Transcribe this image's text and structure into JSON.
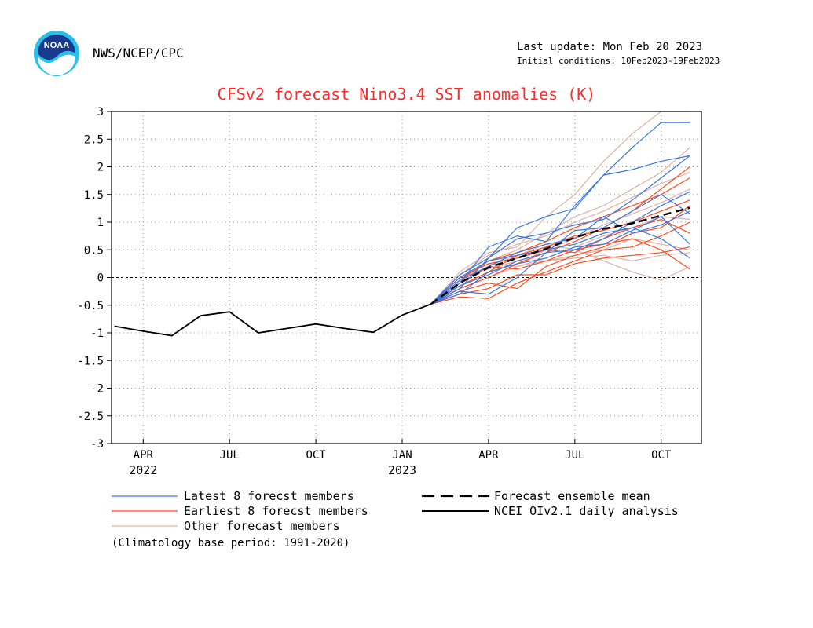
{
  "header": {
    "agency": "NWS/NCEP/CPC",
    "last_update": "Last update: Mon Feb 20 2023",
    "initial_conditions": "Initial conditions: 10Feb2023-19Feb2023",
    "logo_text": "NOAA"
  },
  "footnote": "(Climatology base period: 1991-2020)",
  "colors": {
    "latest": "#3a78e0",
    "earliest": "#ff4a1c",
    "other": "#e0b0a8",
    "title": "#ff2a2a",
    "observed": "#000000"
  },
  "chart_data": {
    "type": "line",
    "title": "CFSv2 forecast Nino3.4 SST anomalies (K)",
    "xlabel": "",
    "ylabel": "",
    "ylim": [
      -3,
      3
    ],
    "xlim": [
      "2022-03",
      "2023-11"
    ],
    "yticks": [
      "3",
      "2.5",
      "2",
      "1.5",
      "1",
      "0.5",
      "0",
      "-0.5",
      "-1",
      "-1.5",
      "-2",
      "-2.5",
      "-3"
    ],
    "ytick_values": [
      3,
      2.5,
      2,
      1.5,
      1,
      0.5,
      0,
      -0.5,
      -1,
      -1.5,
      -2,
      -2.5,
      -3
    ],
    "xticks": [
      {
        "label": "APR",
        "year": "2022",
        "value": "2022-04"
      },
      {
        "label": "JUL",
        "year": "",
        "value": "2022-07"
      },
      {
        "label": "OCT",
        "year": "",
        "value": "2022-10"
      },
      {
        "label": "JAN",
        "year": "2023",
        "value": "2023-01"
      },
      {
        "label": "APR",
        "year": "",
        "value": "2023-04"
      },
      {
        "label": "JUL",
        "year": "",
        "value": "2023-07"
      },
      {
        "label": "OCT",
        "year": "",
        "value": "2023-10"
      }
    ],
    "grid": true,
    "zero_line": true,
    "legend_position": "bottom",
    "legend": [
      {
        "label": "Latest 8 forecst members",
        "style": "latest"
      },
      {
        "label": "Earliest 8 forecst members",
        "style": "earliest"
      },
      {
        "label": "Other forecast members",
        "style": "other"
      },
      {
        "label": "Forecast ensemble mean",
        "style": "mean"
      },
      {
        "label": "NCEI OIv2.1 daily analysis",
        "style": "observed"
      }
    ],
    "forecast_x": [
      "2023-02",
      "2023-03",
      "2023-04",
      "2023-05",
      "2023-06",
      "2023-07",
      "2023-08",
      "2023-09",
      "2023-10",
      "2023-11"
    ],
    "series": [
      {
        "name": "NCEI OIv2.1 daily analysis",
        "kind": "observed",
        "x": [
          "2022-03",
          "2022-04",
          "2022-05",
          "2022-06",
          "2022-07",
          "2022-08",
          "2022-09",
          "2022-10",
          "2022-11",
          "2022-12",
          "2023-01",
          "2023-02"
        ],
        "values": [
          -0.88,
          -0.97,
          -1.05,
          -0.69,
          -0.62,
          -1.0,
          -0.92,
          -0.84,
          -0.92,
          -0.99,
          -0.68,
          -0.48
        ]
      },
      {
        "name": "Forecast ensemble mean",
        "kind": "mean",
        "values": [
          -0.48,
          -0.1,
          0.18,
          0.35,
          0.52,
          0.72,
          0.88,
          0.98,
          1.12,
          1.26
        ]
      }
    ],
    "members": {
      "latest": [
        [
          -0.48,
          -0.2,
          0.35,
          0.9,
          1.1,
          1.25,
          1.85,
          2.35,
          2.8,
          2.8
        ],
        [
          -0.48,
          -0.1,
          0.55,
          0.75,
          0.65,
          1.3,
          1.85,
          1.95,
          2.1,
          2.2
        ],
        [
          -0.48,
          -0.25,
          -0.3,
          0.0,
          0.45,
          0.85,
          0.9,
          1.2,
          1.5,
          1.15
        ],
        [
          -0.48,
          0.0,
          0.3,
          0.4,
          0.5,
          0.6,
          0.8,
          0.9,
          0.7,
          0.35
        ],
        [
          -0.48,
          -0.3,
          0.1,
          0.25,
          0.35,
          0.55,
          0.6,
          0.85,
          1.1,
          0.6
        ],
        [
          -0.48,
          -0.05,
          0.2,
          0.45,
          0.6,
          0.7,
          1.1,
          0.8,
          0.95,
          1.2
        ],
        [
          -0.48,
          -0.15,
          0.05,
          0.3,
          0.45,
          0.5,
          0.7,
          1.0,
          1.3,
          1.55
        ],
        [
          -0.48,
          0.05,
          0.35,
          0.7,
          0.8,
          0.95,
          1.05,
          1.4,
          1.8,
          2.2
        ]
      ],
      "earliest": [
        [
          -0.48,
          -0.35,
          -0.38,
          -0.1,
          0.1,
          0.3,
          0.5,
          0.55,
          0.75,
          1.0
        ],
        [
          -0.48,
          -0.2,
          0.0,
          0.25,
          0.45,
          0.65,
          0.9,
          1.2,
          1.6,
          2.0
        ],
        [
          -0.48,
          -0.1,
          0.2,
          0.15,
          0.3,
          0.5,
          0.6,
          0.7,
          0.5,
          0.15
        ],
        [
          -0.48,
          -0.25,
          -0.1,
          -0.2,
          0.2,
          0.4,
          0.55,
          0.8,
          0.9,
          1.3
        ],
        [
          -0.48,
          -0.05,
          0.3,
          0.45,
          0.65,
          0.9,
          1.1,
          1.3,
          1.5,
          1.8
        ],
        [
          -0.48,
          -0.3,
          -0.2,
          0.05,
          0.05,
          0.25,
          0.35,
          0.4,
          0.45,
          0.55
        ],
        [
          -0.48,
          -0.15,
          0.1,
          0.4,
          0.55,
          0.75,
          0.85,
          1.0,
          1.2,
          1.4
        ],
        [
          -0.48,
          0.0,
          0.25,
          0.35,
          0.5,
          0.45,
          0.7,
          0.9,
          1.05,
          0.8
        ]
      ],
      "other": [
        [
          -0.48,
          0.1,
          0.45,
          0.55,
          1.1,
          1.5,
          2.1,
          2.6,
          3.0,
          3.0
        ],
        [
          -0.48,
          -0.05,
          0.2,
          0.4,
          0.6,
          0.5,
          0.3,
          0.1,
          -0.05,
          0.2
        ],
        [
          -0.48,
          0.0,
          0.15,
          0.3,
          0.3,
          0.4,
          0.5,
          0.7,
          0.6,
          0.5
        ],
        [
          -0.48,
          -0.1,
          0.3,
          0.5,
          0.8,
          1.1,
          1.3,
          1.6,
          1.9,
          2.35
        ],
        [
          -0.48,
          -0.2,
          0.0,
          0.2,
          0.35,
          0.55,
          0.75,
          0.9,
          1.1,
          1.05
        ],
        [
          -0.48,
          0.05,
          0.4,
          0.6,
          0.75,
          1.0,
          1.2,
          1.45,
          1.7,
          1.9
        ],
        [
          -0.48,
          -0.15,
          0.1,
          0.25,
          0.5,
          0.7,
          0.95,
          1.15,
          1.35,
          1.6
        ],
        [
          -0.48,
          0.0,
          0.25,
          0.2,
          0.3,
          0.35,
          0.4,
          0.3,
          0.4,
          0.45
        ]
      ]
    }
  }
}
